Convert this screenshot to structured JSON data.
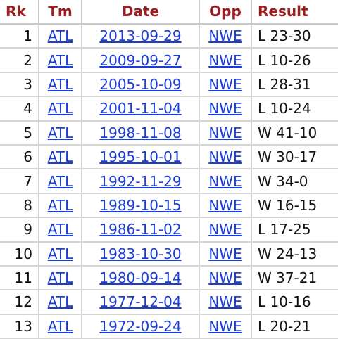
{
  "table": {
    "headers": {
      "rk": "Rk",
      "tm": "Tm",
      "date": "Date",
      "opp": "Opp",
      "result": "Result"
    },
    "colors": {
      "header_text": "#9b1d20",
      "link": "#1a3cd8",
      "grid": "#d4d4d4"
    },
    "rows": [
      {
        "rk": "1",
        "tm": "ATL",
        "date": "2013-09-29",
        "opp": "NWE",
        "result": "L 23-30"
      },
      {
        "rk": "2",
        "tm": "ATL",
        "date": "2009-09-27",
        "opp": "NWE",
        "result": "L 10-26"
      },
      {
        "rk": "3",
        "tm": "ATL",
        "date": "2005-10-09",
        "opp": "NWE",
        "result": "L 28-31"
      },
      {
        "rk": "4",
        "tm": "ATL",
        "date": "2001-11-04",
        "opp": "NWE",
        "result": "L 10-24"
      },
      {
        "rk": "5",
        "tm": "ATL",
        "date": "1998-11-08",
        "opp": "NWE",
        "result": "W 41-10"
      },
      {
        "rk": "6",
        "tm": "ATL",
        "date": "1995-10-01",
        "opp": "NWE",
        "result": "W 30-17"
      },
      {
        "rk": "7",
        "tm": "ATL",
        "date": "1992-11-29",
        "opp": "NWE",
        "result": "W 34-0"
      },
      {
        "rk": "8",
        "tm": "ATL",
        "date": "1989-10-15",
        "opp": "NWE",
        "result": "W 16-15"
      },
      {
        "rk": "9",
        "tm": "ATL",
        "date": "1986-11-02",
        "opp": "NWE",
        "result": "L 17-25"
      },
      {
        "rk": "10",
        "tm": "ATL",
        "date": "1983-10-30",
        "opp": "NWE",
        "result": "W 24-13"
      },
      {
        "rk": "11",
        "tm": "ATL",
        "date": "1980-09-14",
        "opp": "NWE",
        "result": "W 37-21"
      },
      {
        "rk": "12",
        "tm": "ATL",
        "date": "1977-12-04",
        "opp": "NWE",
        "result": "L 10-16"
      },
      {
        "rk": "13",
        "tm": "ATL",
        "date": "1972-09-24",
        "opp": "NWE",
        "result": "L 20-21"
      }
    ]
  }
}
